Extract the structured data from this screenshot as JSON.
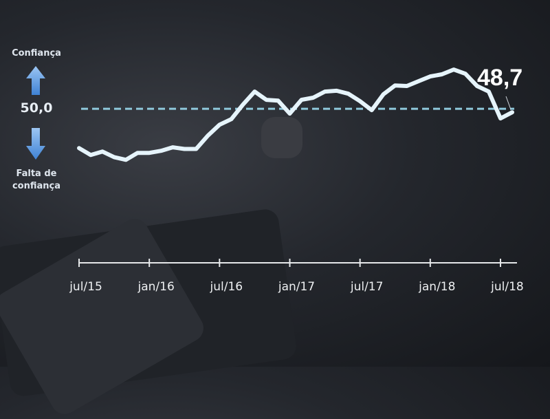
{
  "chart_data": {
    "type": "line",
    "title": "",
    "xlabel": "",
    "ylabel": "",
    "x_tick_labels": [
      "jul/15",
      "jan/16",
      "jul/16",
      "jan/17",
      "jul/17",
      "jan/18",
      "jul/18"
    ],
    "x_tick_indices": [
      0,
      6,
      12,
      18,
      24,
      30,
      36
    ],
    "series": [
      {
        "values": [
          35.2,
          32.6,
          33.9,
          31.8,
          30.8,
          33.4,
          33.4,
          34.2,
          35.5,
          34.9,
          34.9,
          39.9,
          44.0,
          46.1,
          51.6,
          56.5,
          53.4,
          53.1,
          48.2,
          53.4,
          54.2,
          56.5,
          56.8,
          55.7,
          52.9,
          49.5,
          55.5,
          58.8,
          58.6,
          60.4,
          62.2,
          63.0,
          64.8,
          63.2,
          58.6,
          56.5,
          46.4,
          48.7
        ],
        "color": "#e6f4fb"
      }
    ],
    "reference_line": {
      "value": 50.0,
      "label": "50,0",
      "style": "dashed",
      "color": "#8fc9dc"
    },
    "last_value_label": "48,7",
    "ylim": [
      -8,
      70
    ],
    "grid": false,
    "annotations": {
      "above": "Confiança",
      "below_line1": "Falta de",
      "below_line2": "confiança",
      "arrow_color": "#5b9be0"
    }
  }
}
